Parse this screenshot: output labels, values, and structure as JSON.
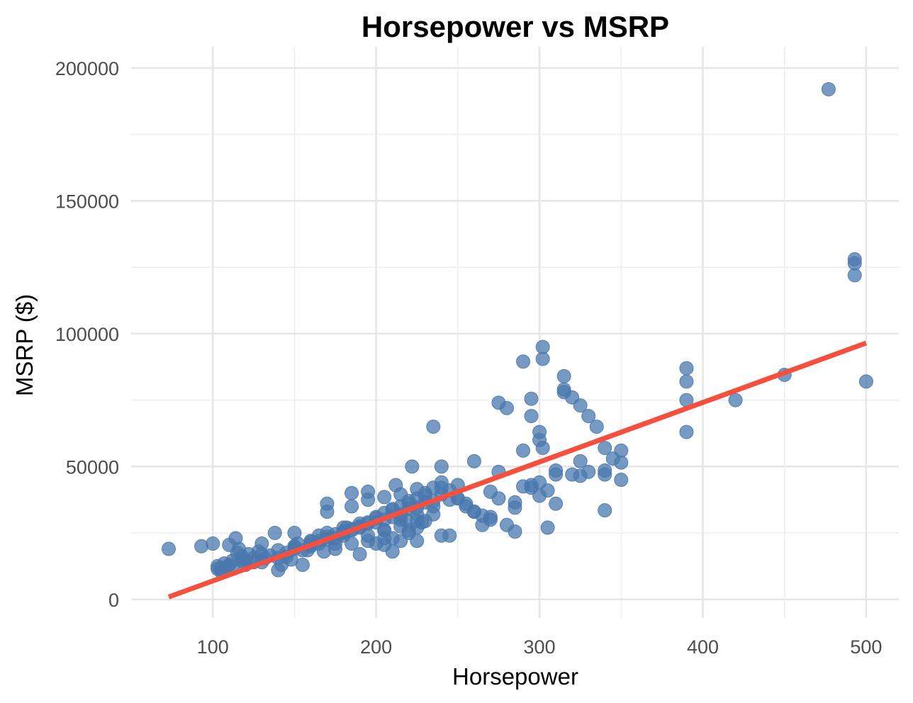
{
  "chart_data": {
    "type": "scatter",
    "title": "Horsepower vs MSRP",
    "xlabel": "Horsepower",
    "ylabel": "MSRP ($)",
    "xlim": [
      50,
      520
    ],
    "ylim": [
      -7000,
      208000
    ],
    "x_ticks": [
      100,
      200,
      300,
      400,
      500
    ],
    "y_ticks": [
      0,
      50000,
      100000,
      150000,
      200000
    ],
    "x_tick_labels": [
      "100",
      "200",
      "300",
      "400",
      "500"
    ],
    "y_tick_labels": [
      "0",
      "50000",
      "100000",
      "150000",
      "200000"
    ],
    "grid": true,
    "point_color": "#4a78ad",
    "line_color": "#f5503f",
    "trend_line": {
      "x": [
        73,
        500
      ],
      "y": [
        900,
        96500
      ]
    },
    "series": [
      {
        "x": [
          73,
          93,
          100,
          103,
          103,
          105,
          107,
          108,
          110,
          112,
          114,
          115,
          116,
          118,
          120,
          122,
          125,
          128,
          130,
          132,
          138,
          140,
          142,
          145,
          148,
          150,
          152,
          155,
          158,
          160,
          165,
          168,
          170,
          170,
          175,
          180,
          182,
          185,
          190,
          195,
          200,
          205,
          210,
          212,
          215,
          218,
          220,
          222,
          225,
          228,
          235,
          240,
          240,
          245,
          250,
          260,
          265,
          270,
          275,
          275,
          280,
          285,
          290,
          290,
          295,
          295,
          300,
          300,
          302,
          302,
          302,
          305,
          310,
          315,
          315,
          315,
          320,
          325,
          330,
          335,
          340,
          340,
          340,
          345,
          350,
          350,
          390,
          390,
          390,
          390,
          420,
          450,
          477,
          493,
          493,
          493,
          500,
          105,
          110,
          112,
          118,
          120,
          125,
          130,
          135,
          140,
          145,
          150,
          155,
          160,
          165,
          170,
          175,
          180,
          185,
          190,
          195,
          200,
          205,
          210,
          215,
          220,
          225,
          230,
          235,
          240,
          245,
          250,
          255,
          260,
          265,
          270,
          280,
          285,
          290,
          295,
          300,
          305,
          310,
          320,
          325,
          330,
          150,
          160,
          170,
          180,
          190,
          200,
          210,
          220,
          230,
          240,
          195,
          205,
          215,
          225,
          235,
          185,
          195,
          205,
          215,
          225,
          130,
          140,
          150,
          160,
          170,
          180,
          190,
          200,
          210,
          220,
          230,
          240,
          250,
          260,
          270,
          165,
          175,
          185,
          195,
          205,
          215,
          225,
          235,
          245,
          255,
          175,
          185,
          195,
          205,
          215,
          225,
          235,
          300,
          310,
          325,
          340,
          350,
          275,
          285,
          295,
          205,
          210,
          220,
          225,
          230
        ],
        "y": [
          19000,
          20000,
          21000,
          11500,
          12500,
          10500,
          13500,
          12000,
          20500,
          14500,
          23000,
          17500,
          19000,
          16000,
          15000,
          17000,
          14000,
          18000,
          21000,
          15500,
          25000,
          11000,
          13000,
          16000,
          15000,
          25000,
          21000,
          13000,
          18500,
          20000,
          24000,
          18000,
          36000,
          33000,
          21000,
          24000,
          27000,
          40000,
          17000,
          40500,
          21000,
          23000,
          18000,
          43000,
          22000,
          30000,
          26000,
          50000,
          22000,
          29000,
          65000,
          50000,
          24000,
          24000,
          43000,
          52000,
          28000,
          40500,
          74000,
          48000,
          72000,
          25500,
          89500,
          56000,
          75500,
          69000,
          63000,
          60000,
          57000,
          95000,
          90500,
          27000,
          48500,
          84000,
          79000,
          78000,
          76000,
          73000,
          69000,
          65000,
          57000,
          48500,
          33500,
          53000,
          56000,
          51500,
          87000,
          82000,
          75000,
          63000,
          75000,
          84500,
          192000,
          128000,
          126500,
          122000,
          82000,
          11500,
          13000,
          12500,
          14500,
          13000,
          15500,
          14000,
          16500,
          15500,
          17500,
          19000,
          18500,
          20500,
          21000,
          22500,
          23000,
          25500,
          26500,
          27500,
          29000,
          31000,
          32500,
          33500,
          35000,
          37000,
          38000,
          40000,
          42000,
          44000,
          41000,
          38000,
          35000,
          33000,
          31500,
          30000,
          28000,
          36500,
          42500,
          43000,
          44000,
          41000,
          36000,
          47000,
          46500,
          48000,
          20000,
          22000,
          25000,
          27000,
          28500,
          30500,
          34000,
          36000,
          39000,
          42000,
          22000,
          26000,
          30000,
          32000,
          35000,
          35000,
          37500,
          38500,
          39500,
          41500,
          17000,
          18500,
          19500,
          21500,
          23500,
          25000,
          27000,
          29000,
          31000,
          34000,
          36500,
          39500,
          38000,
          33000,
          31000,
          22000,
          24500,
          26000,
          28500,
          30000,
          32000,
          34500,
          37000,
          37500,
          36000,
          19000,
          21000,
          24000,
          26000,
          27500,
          29500,
          32000,
          39000,
          47000,
          52000,
          47000,
          45000,
          38000,
          34500,
          42000,
          20500,
          23000,
          25000,
          27000,
          29500
        ]
      }
    ]
  }
}
